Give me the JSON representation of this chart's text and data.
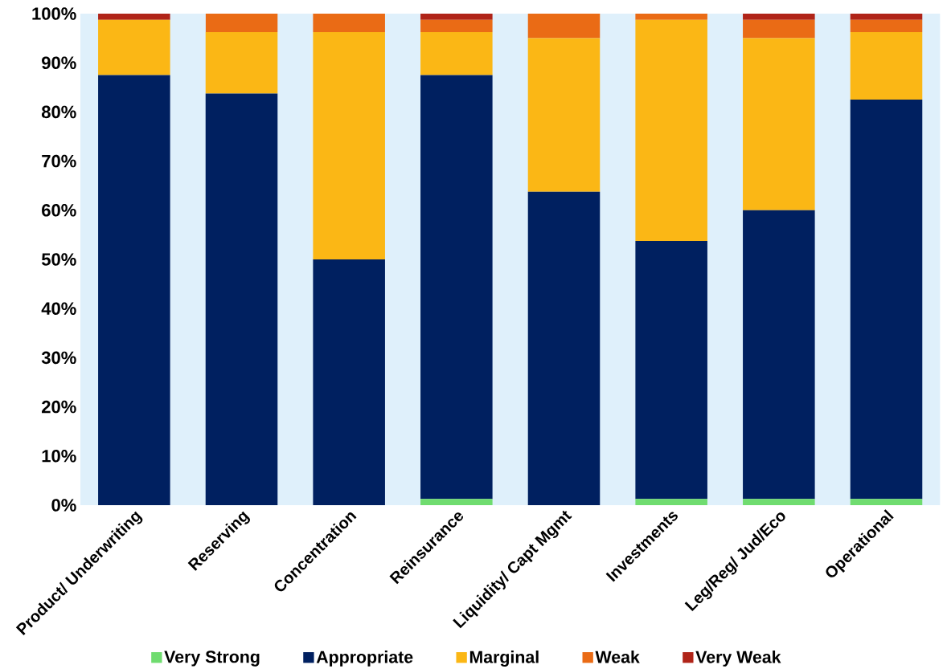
{
  "chart_data": {
    "type": "bar",
    "stacked": true,
    "categories": [
      "Product/ Underwriting",
      "Reserving",
      "Concentration",
      "Reinsurance",
      "Liquidity/ Capt Mgmt",
      "Investments",
      "Leg/Reg/ Jud/Eco",
      "Operational"
    ],
    "series": [
      {
        "name": "Very Strong",
        "color": "#6fdc6f",
        "values": [
          0,
          0,
          0,
          1.25,
          0,
          1.25,
          1.25,
          1.25
        ]
      },
      {
        "name": "Appropriate",
        "color": "#002060",
        "values": [
          87.5,
          83.75,
          50,
          86.25,
          63.75,
          52.5,
          58.75,
          81.25
        ]
      },
      {
        "name": "Marginal",
        "color": "#fbb715",
        "values": [
          11.25,
          12.5,
          46.25,
          8.75,
          31.25,
          45,
          35,
          13.75
        ]
      },
      {
        "name": "Weak",
        "color": "#ea6b15",
        "values": [
          0,
          3.75,
          3.75,
          2.5,
          5,
          1.25,
          3.75,
          2.5
        ]
      },
      {
        "name": "Very Weak",
        "color": "#b02418",
        "values": [
          1.25,
          0,
          0,
          1.25,
          0,
          0,
          1.25,
          1.25
        ]
      }
    ],
    "ylim": [
      0,
      100
    ],
    "yticks": [
      {
        "value": 0,
        "label": "0%"
      },
      {
        "value": 10,
        "label": "10%"
      },
      {
        "value": 20,
        "label": "20%"
      },
      {
        "value": 30,
        "label": "30%"
      },
      {
        "value": 40,
        "label": "40%"
      },
      {
        "value": 50,
        "label": "50%"
      },
      {
        "value": 60,
        "label": "60%"
      },
      {
        "value": 70,
        "label": "70%"
      },
      {
        "value": 80,
        "label": "80%"
      },
      {
        "value": 90,
        "label": "90%"
      },
      {
        "value": 100,
        "label": "100%"
      }
    ],
    "legend": "bottom",
    "grid": false
  }
}
